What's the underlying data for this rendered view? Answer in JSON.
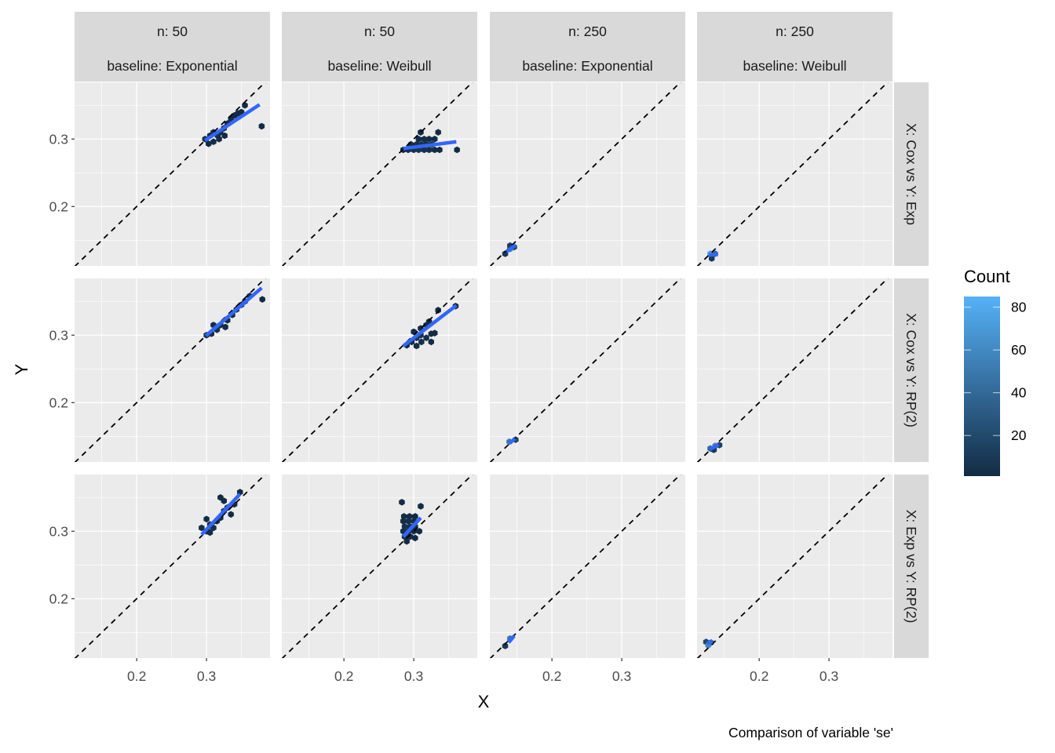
{
  "chart_data": {
    "type": "hexbin-facet",
    "xlabel": "X",
    "ylabel": "Y",
    "caption": "Comparison of variable 'se'",
    "xlim": [
      0.111,
      0.391
    ],
    "ylim": [
      0.112,
      0.384
    ],
    "x_ticks": [
      0.2,
      0.3
    ],
    "y_ticks": [
      0.2,
      0.3
    ],
    "x_tick_labels": [
      "0.2",
      "0.3"
    ],
    "y_tick_labels": [
      "0.2",
      "0.3"
    ],
    "grid": true,
    "reference_line": "y = x (dashed)",
    "fit_line_color": "#3366FF",
    "col_strips": [
      {
        "line1": "n: 50",
        "line2": "baseline: Exponential"
      },
      {
        "line1": "n: 50",
        "line2": "baseline: Weibull"
      },
      {
        "line1": "n: 250",
        "line2": "baseline: Exponential"
      },
      {
        "line1": "n: 250",
        "line2": "baseline: Weibull"
      }
    ],
    "row_strips": [
      "X: Cox vs Y: Exp",
      "X: Cox vs Y: RP(2)",
      "X: Exp vs Y: RP(2)"
    ],
    "legend": {
      "title": "Count",
      "position": "right",
      "range": [
        1,
        85
      ],
      "ticks": [
        20,
        40,
        60,
        80
      ],
      "tick_labels": [
        "20",
        "40",
        "60",
        "80"
      ],
      "low_color": "#132B43",
      "high_color": "#56B1F7"
    },
    "panels": [
      {
        "row": 0,
        "col": 0,
        "fit": [
          [
            0.298,
            0.298
          ],
          [
            0.376,
            0.351
          ]
        ],
        "hexes": [
          [
            0.298,
            0.3,
            3
          ],
          [
            0.305,
            0.305,
            4
          ],
          [
            0.31,
            0.296,
            2
          ],
          [
            0.31,
            0.31,
            3
          ],
          [
            0.316,
            0.305,
            5
          ],
          [
            0.32,
            0.31,
            4
          ],
          [
            0.325,
            0.316,
            3
          ],
          [
            0.33,
            0.323,
            2
          ],
          [
            0.335,
            0.33,
            2
          ],
          [
            0.34,
            0.335,
            1
          ],
          [
            0.345,
            0.338,
            1
          ],
          [
            0.35,
            0.34,
            1
          ],
          [
            0.355,
            0.35,
            1
          ],
          [
            0.318,
            0.3,
            2
          ],
          [
            0.326,
            0.305,
            1
          ],
          [
            0.303,
            0.293,
            1
          ],
          [
            0.379,
            0.319,
            1
          ]
        ]
      },
      {
        "row": 0,
        "col": 1,
        "fit": [
          [
            0.285,
            0.286
          ],
          [
            0.361,
            0.296
          ]
        ],
        "hexes": [
          [
            0.285,
            0.284,
            2
          ],
          [
            0.292,
            0.284,
            4
          ],
          [
            0.3,
            0.284,
            6
          ],
          [
            0.307,
            0.284,
            7
          ],
          [
            0.315,
            0.284,
            5
          ],
          [
            0.322,
            0.284,
            4
          ],
          [
            0.33,
            0.284,
            2
          ],
          [
            0.337,
            0.284,
            1
          ],
          [
            0.296,
            0.292,
            3
          ],
          [
            0.304,
            0.292,
            5
          ],
          [
            0.311,
            0.292,
            6
          ],
          [
            0.318,
            0.292,
            4
          ],
          [
            0.326,
            0.292,
            2
          ],
          [
            0.307,
            0.3,
            3
          ],
          [
            0.315,
            0.3,
            3
          ],
          [
            0.322,
            0.3,
            2
          ],
          [
            0.33,
            0.3,
            1
          ],
          [
            0.31,
            0.31,
            1
          ],
          [
            0.335,
            0.31,
            1
          ],
          [
            0.362,
            0.284,
            1
          ]
        ]
      },
      {
        "row": 0,
        "col": 2,
        "fit": [
          [
            0.135,
            0.133
          ],
          [
            0.148,
            0.143
          ]
        ],
        "hexes": [
          [
            0.133,
            0.13,
            8
          ],
          [
            0.14,
            0.137,
            60
          ],
          [
            0.146,
            0.14,
            20
          ],
          [
            0.14,
            0.142,
            12
          ]
        ]
      },
      {
        "row": 0,
        "col": 3,
        "fit": [
          [
            0.128,
            0.128
          ],
          [
            0.141,
            0.129
          ]
        ],
        "hexes": [
          [
            0.13,
            0.13,
            70
          ],
          [
            0.137,
            0.13,
            40
          ],
          [
            0.132,
            0.123,
            10
          ]
        ]
      },
      {
        "row": 1,
        "col": 0,
        "fit": [
          [
            0.299,
            0.299
          ],
          [
            0.379,
            0.37
          ]
        ],
        "hexes": [
          [
            0.3,
            0.3,
            2
          ],
          [
            0.307,
            0.302,
            3
          ],
          [
            0.31,
            0.315,
            2
          ],
          [
            0.315,
            0.308,
            4
          ],
          [
            0.32,
            0.315,
            3
          ],
          [
            0.327,
            0.312,
            2
          ],
          [
            0.33,
            0.322,
            3
          ],
          [
            0.337,
            0.33,
            2
          ],
          [
            0.343,
            0.338,
            2
          ],
          [
            0.35,
            0.345,
            1
          ],
          [
            0.355,
            0.35,
            1
          ],
          [
            0.362,
            0.358,
            1
          ],
          [
            0.38,
            0.353,
            1
          ]
        ]
      },
      {
        "row": 1,
        "col": 1,
        "fit": [
          [
            0.285,
            0.284
          ],
          [
            0.361,
            0.344
          ]
        ],
        "hexes": [
          [
            0.29,
            0.285,
            2
          ],
          [
            0.297,
            0.29,
            3
          ],
          [
            0.304,
            0.296,
            5
          ],
          [
            0.31,
            0.3,
            6
          ],
          [
            0.304,
            0.284,
            2
          ],
          [
            0.311,
            0.29,
            4
          ],
          [
            0.318,
            0.296,
            5
          ],
          [
            0.325,
            0.302,
            3
          ],
          [
            0.3,
            0.305,
            2
          ],
          [
            0.31,
            0.31,
            3
          ],
          [
            0.318,
            0.315,
            2
          ],
          [
            0.325,
            0.29,
            2
          ],
          [
            0.33,
            0.303,
            1
          ],
          [
            0.335,
            0.337,
            1
          ],
          [
            0.36,
            0.343,
            1
          ],
          [
            0.322,
            0.32,
            1
          ]
        ]
      },
      {
        "row": 1,
        "col": 2,
        "fit": [
          [
            0.14,
            0.14
          ],
          [
            0.147,
            0.147
          ]
        ],
        "hexes": [
          [
            0.139,
            0.142,
            50
          ],
          [
            0.148,
            0.145,
            15
          ]
        ]
      },
      {
        "row": 1,
        "col": 3,
        "fit": [
          [
            0.13,
            0.131
          ],
          [
            0.142,
            0.138
          ]
        ],
        "hexes": [
          [
            0.13,
            0.132,
            40
          ],
          [
            0.137,
            0.136,
            60
          ],
          [
            0.143,
            0.137,
            15
          ],
          [
            0.135,
            0.13,
            10
          ]
        ]
      },
      {
        "row": 2,
        "col": 0,
        "fit": [
          [
            0.293,
            0.295
          ],
          [
            0.348,
            0.355
          ]
        ],
        "hexes": [
          [
            0.293,
            0.305,
            2
          ],
          [
            0.3,
            0.3,
            3
          ],
          [
            0.305,
            0.31,
            4
          ],
          [
            0.3,
            0.318,
            1
          ],
          [
            0.31,
            0.305,
            3
          ],
          [
            0.315,
            0.315,
            4
          ],
          [
            0.32,
            0.32,
            3
          ],
          [
            0.325,
            0.33,
            2
          ],
          [
            0.33,
            0.335,
            2
          ],
          [
            0.335,
            0.325,
            1
          ],
          [
            0.32,
            0.35,
            1
          ],
          [
            0.325,
            0.345,
            1
          ],
          [
            0.34,
            0.34,
            1
          ],
          [
            0.348,
            0.358,
            1
          ],
          [
            0.305,
            0.298,
            2
          ]
        ]
      },
      {
        "row": 2,
        "col": 1,
        "fit": [
          [
            0.285,
            0.292
          ],
          [
            0.31,
            0.32
          ]
        ],
        "hexes": [
          [
            0.283,
            0.343,
            1
          ],
          [
            0.31,
            0.337,
            1
          ],
          [
            0.285,
            0.315,
            3
          ],
          [
            0.292,
            0.315,
            4
          ],
          [
            0.3,
            0.315,
            3
          ],
          [
            0.287,
            0.307,
            5
          ],
          [
            0.295,
            0.307,
            6
          ],
          [
            0.302,
            0.307,
            4
          ],
          [
            0.285,
            0.3,
            4
          ],
          [
            0.292,
            0.3,
            5
          ],
          [
            0.3,
            0.3,
            3
          ],
          [
            0.287,
            0.292,
            3
          ],
          [
            0.295,
            0.292,
            2
          ],
          [
            0.29,
            0.285,
            1
          ],
          [
            0.286,
            0.322,
            2
          ],
          [
            0.294,
            0.322,
            2
          ],
          [
            0.302,
            0.322,
            1
          ],
          [
            0.308,
            0.3,
            1
          ],
          [
            0.302,
            0.29,
            1
          ]
        ]
      },
      {
        "row": 2,
        "col": 2,
        "fit": [
          [
            0.138,
            0.135
          ],
          [
            0.146,
            0.145
          ]
        ],
        "hexes": [
          [
            0.133,
            0.13,
            10
          ],
          [
            0.14,
            0.141,
            50
          ]
        ]
      },
      {
        "row": 2,
        "col": 3,
        "fit": [
          [
            0.125,
            0.134
          ],
          [
            0.133,
            0.136
          ]
        ],
        "hexes": [
          [
            0.124,
            0.136,
            20
          ],
          [
            0.131,
            0.135,
            40
          ],
          [
            0.127,
            0.131,
            60
          ]
        ]
      }
    ]
  }
}
